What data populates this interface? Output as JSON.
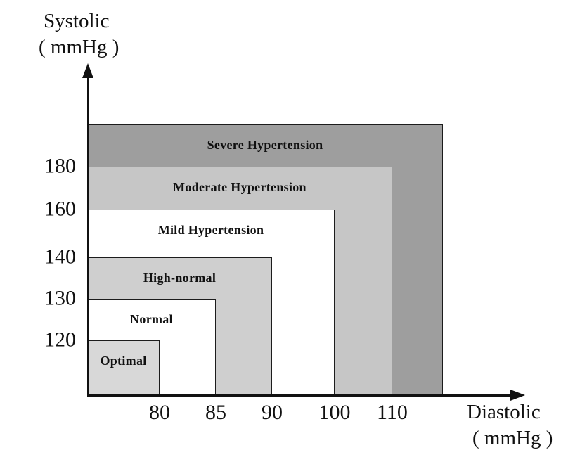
{
  "chart_data": {
    "type": "area",
    "description_semantics": "Nested blood-pressure classification regions anchored at the axes origin",
    "xlabel": "Diastolic ( mmHg )",
    "ylabel": "Systolic ( mmHg )",
    "x_axis_title_lines": [
      "Diastolic",
      "( mmHg )"
    ],
    "y_axis_title_lines": [
      "Systolic",
      "( mmHg )"
    ],
    "x_ticks": [
      80,
      85,
      90,
      100,
      110
    ],
    "y_ticks": [
      120,
      130,
      140,
      160,
      180
    ],
    "grid": false,
    "regions": [
      {
        "label": "Severe Hypertension",
        "diastolic_max": null,
        "systolic_max": null,
        "fill": "#9e9e9e"
      },
      {
        "label": "Moderate Hypertension",
        "diastolic_max": 110,
        "systolic_max": 180,
        "fill": "#c6c6c6"
      },
      {
        "label": "Mild Hypertension",
        "diastolic_max": 100,
        "systolic_max": 160,
        "fill": "#ffffff"
      },
      {
        "label": "High-normal",
        "diastolic_max": 90,
        "systolic_max": 140,
        "fill": "#cfcfcf"
      },
      {
        "label": "Normal",
        "diastolic_max": 85,
        "systolic_max": 130,
        "fill": "#ffffff"
      },
      {
        "label": "Optimal",
        "diastolic_max": 80,
        "systolic_max": 120,
        "fill": "#d8d8d8"
      }
    ],
    "colors": {
      "axis": "#111111",
      "region_border": "#1c1c1c"
    }
  }
}
